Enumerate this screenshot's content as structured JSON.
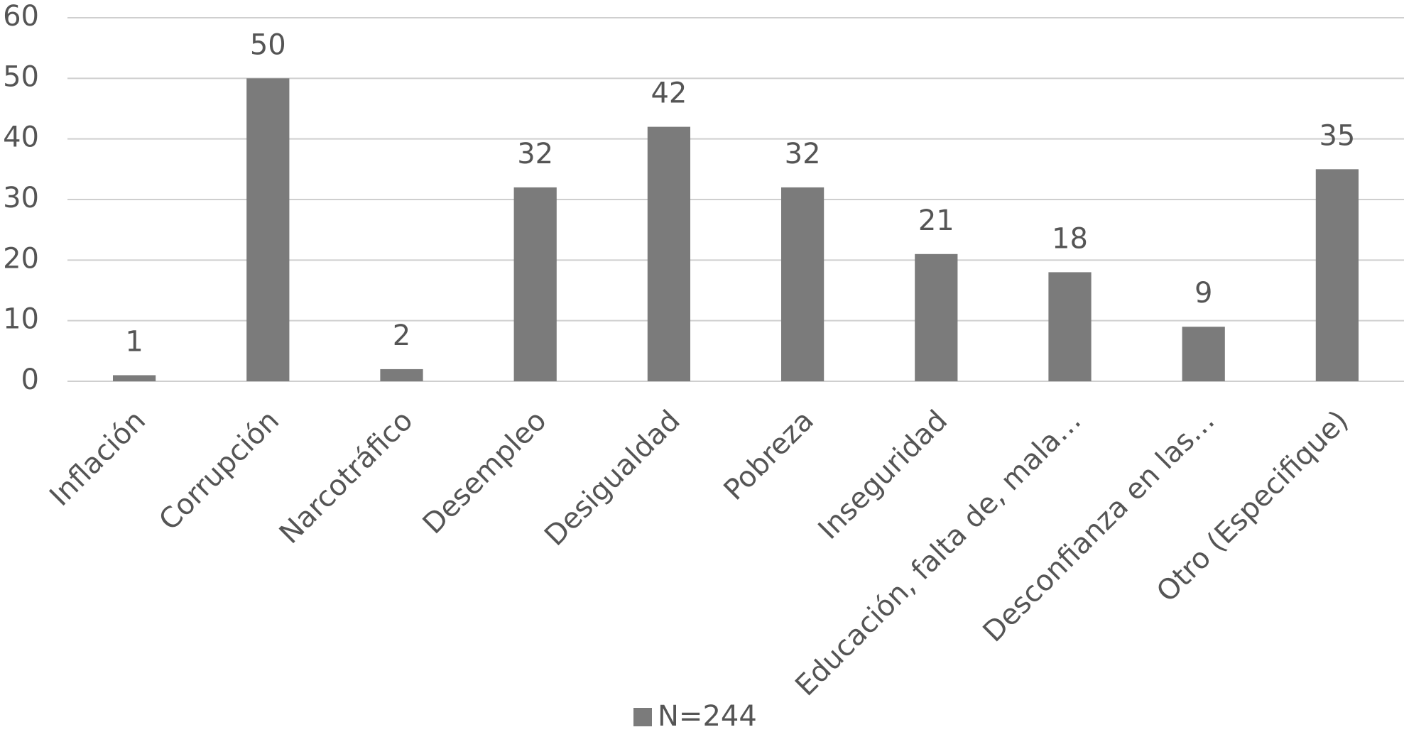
{
  "chart_data": {
    "type": "bar",
    "categories": [
      "Inflación",
      "Corrupción",
      "Narcotráfico",
      "Desempleo",
      "Desigualdad",
      "Pobreza",
      "Inseguridad",
      "Educación, falta de, mala…",
      "Desconfianza en las…",
      "Otro (Especifique)"
    ],
    "series": [
      {
        "name": "N=244",
        "color": "#7b7b7b",
        "values": [
          1,
          50,
          2,
          32,
          42,
          32,
          21,
          18,
          9,
          35
        ]
      }
    ],
    "ylim": [
      0,
      60
    ],
    "yticks": [
      0,
      10,
      20,
      30,
      40,
      50,
      60
    ],
    "grid": true,
    "legend": "bottom"
  }
}
